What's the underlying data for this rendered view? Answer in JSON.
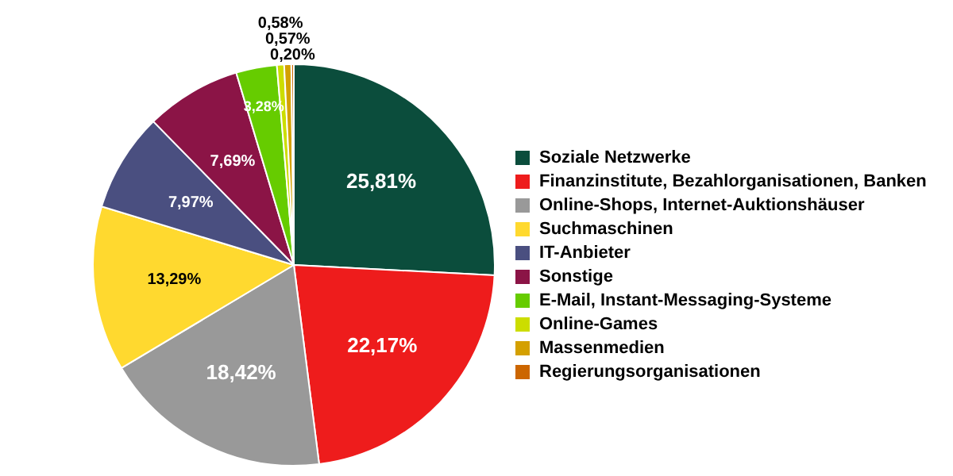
{
  "chart_data": {
    "type": "pie",
    "categories": [
      "Soziale Netzwerke",
      "Finanzinstitute, Bezahlorganisationen, Banken",
      "Online-Shops, Internet-Auktionshäuser",
      "Suchmaschinen",
      "IT-Anbieter",
      "Sonstige",
      "E-Mail, Instant-Messaging-Systeme",
      "Online-Games",
      "Massenmedien",
      "Regierungsorganisationen"
    ],
    "values": [
      25.81,
      22.17,
      18.42,
      13.29,
      7.97,
      7.69,
      3.28,
      0.58,
      0.57,
      0.2
    ],
    "value_labels": [
      "25,81%",
      "22,17%",
      "18,42%",
      "13,29%",
      "7,97%",
      "7,69%",
      "3,28%",
      "0,58%",
      "0,57%",
      "0,20%"
    ],
    "colors": [
      "#0b4d3c",
      "#ee1c1c",
      "#999999",
      "#ffd92f",
      "#4a4f80",
      "#8b1446",
      "#66cc00",
      "#ccdd00",
      "#d4a000",
      "#cc6600"
    ],
    "legend": "right"
  }
}
